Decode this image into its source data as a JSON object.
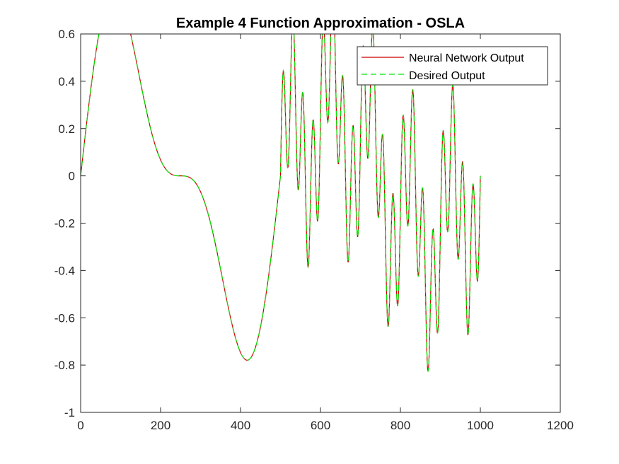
{
  "chart_data": {
    "type": "line",
    "title": "Example 4 Function Approximation - OSLA",
    "xlabel": "",
    "ylabel": "",
    "xlim": [
      0,
      1200
    ],
    "ylim": [
      -1,
      0.6
    ],
    "x_ticks": [
      0,
      200,
      400,
      600,
      800,
      1000,
      1200
    ],
    "y_ticks": [
      -1,
      -0.8,
      -0.6,
      -0.4,
      -0.2,
      0,
      0.2,
      0.4,
      0.6
    ],
    "x_tick_labels": [
      "0",
      "200",
      "400",
      "600",
      "800",
      "1000",
      "1200"
    ],
    "y_tick_labels": [
      "-1",
      "-0.8",
      "-0.6",
      "-0.4",
      "-0.2",
      "0",
      "0.2",
      "0.4",
      "0.6"
    ],
    "grid": false,
    "legend_position": "top-right",
    "series": [
      {
        "name": "Neural Network Output",
        "color": "#cc0000",
        "style": "solid"
      },
      {
        "name": "Desired Output",
        "color": "#00e600",
        "style": "dashed"
      }
    ],
    "x_range": [
      0,
      1000
    ],
    "y_range": [
      -0.92,
      0.56
    ],
    "signal": {
      "segment_1": {
        "x_range": [
          0,
          500
        ],
        "expression": "0.6 sin(pi x / 250) + 0.3 sin(2 pi x / 250)"
      },
      "segment_2": {
        "x_range": [
          500,
          1000
        ],
        "expression": "0.25 sin(pi x / 250) + 0.3 sin(pi x / 50) + 0.3 sin(2 pi x / 25)"
      }
    }
  }
}
